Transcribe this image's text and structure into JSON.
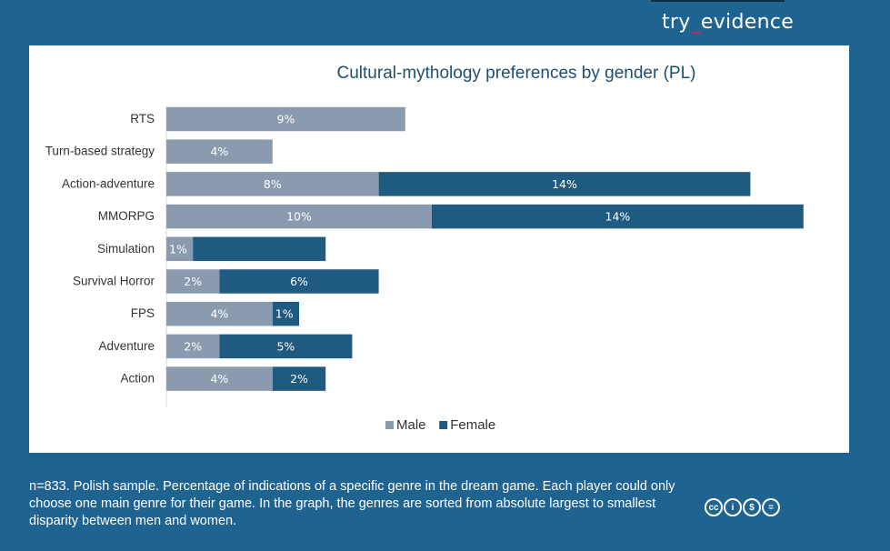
{
  "brand": {
    "part1": "try",
    "sep": "_",
    "part2": "evidence"
  },
  "chart_data": {
    "type": "bar",
    "orientation": "horizontal",
    "stacked": true,
    "title": "Cultural-mythology preferences by gender (PL)",
    "categories": [
      "RTS",
      "Turn-based strategy",
      "Action-adventure",
      "MMORPG",
      "Simulation",
      "Survival Horror",
      "FPS",
      "Adventure",
      "Action"
    ],
    "series": [
      {
        "name": "Male",
        "color": "#8a9bb0",
        "values": [
          9,
          4,
          8,
          10,
          1,
          2,
          4,
          2,
          4
        ],
        "labels": [
          "9%",
          "4%",
          "8%",
          "10%",
          "1%",
          "2%",
          "4%",
          "2%",
          "4%"
        ]
      },
      {
        "name": "Female",
        "color": "#1f5a80",
        "values": [
          0,
          0,
          14,
          14,
          5,
          6,
          1,
          5,
          2
        ],
        "labels": [
          "",
          "",
          "14%",
          "14%",
          "",
          "6%",
          "1%",
          "5%",
          "2%"
        ]
      }
    ],
    "xlim": [
      0,
      24
    ],
    "grid": false,
    "legend": "bottom"
  },
  "footnote": "n=833. Polish sample. Percentage of indications of a specific genre in the dream game. Each player could only choose one main genre for their game. In the graph, the genres are sorted from absolute largest to smallest disparity between men and women.",
  "license_icons": [
    "cc-icon",
    "by-icon",
    "nc-icon",
    "nd-icon"
  ],
  "license_glyphs": [
    "cc",
    "i",
    "$",
    "="
  ]
}
